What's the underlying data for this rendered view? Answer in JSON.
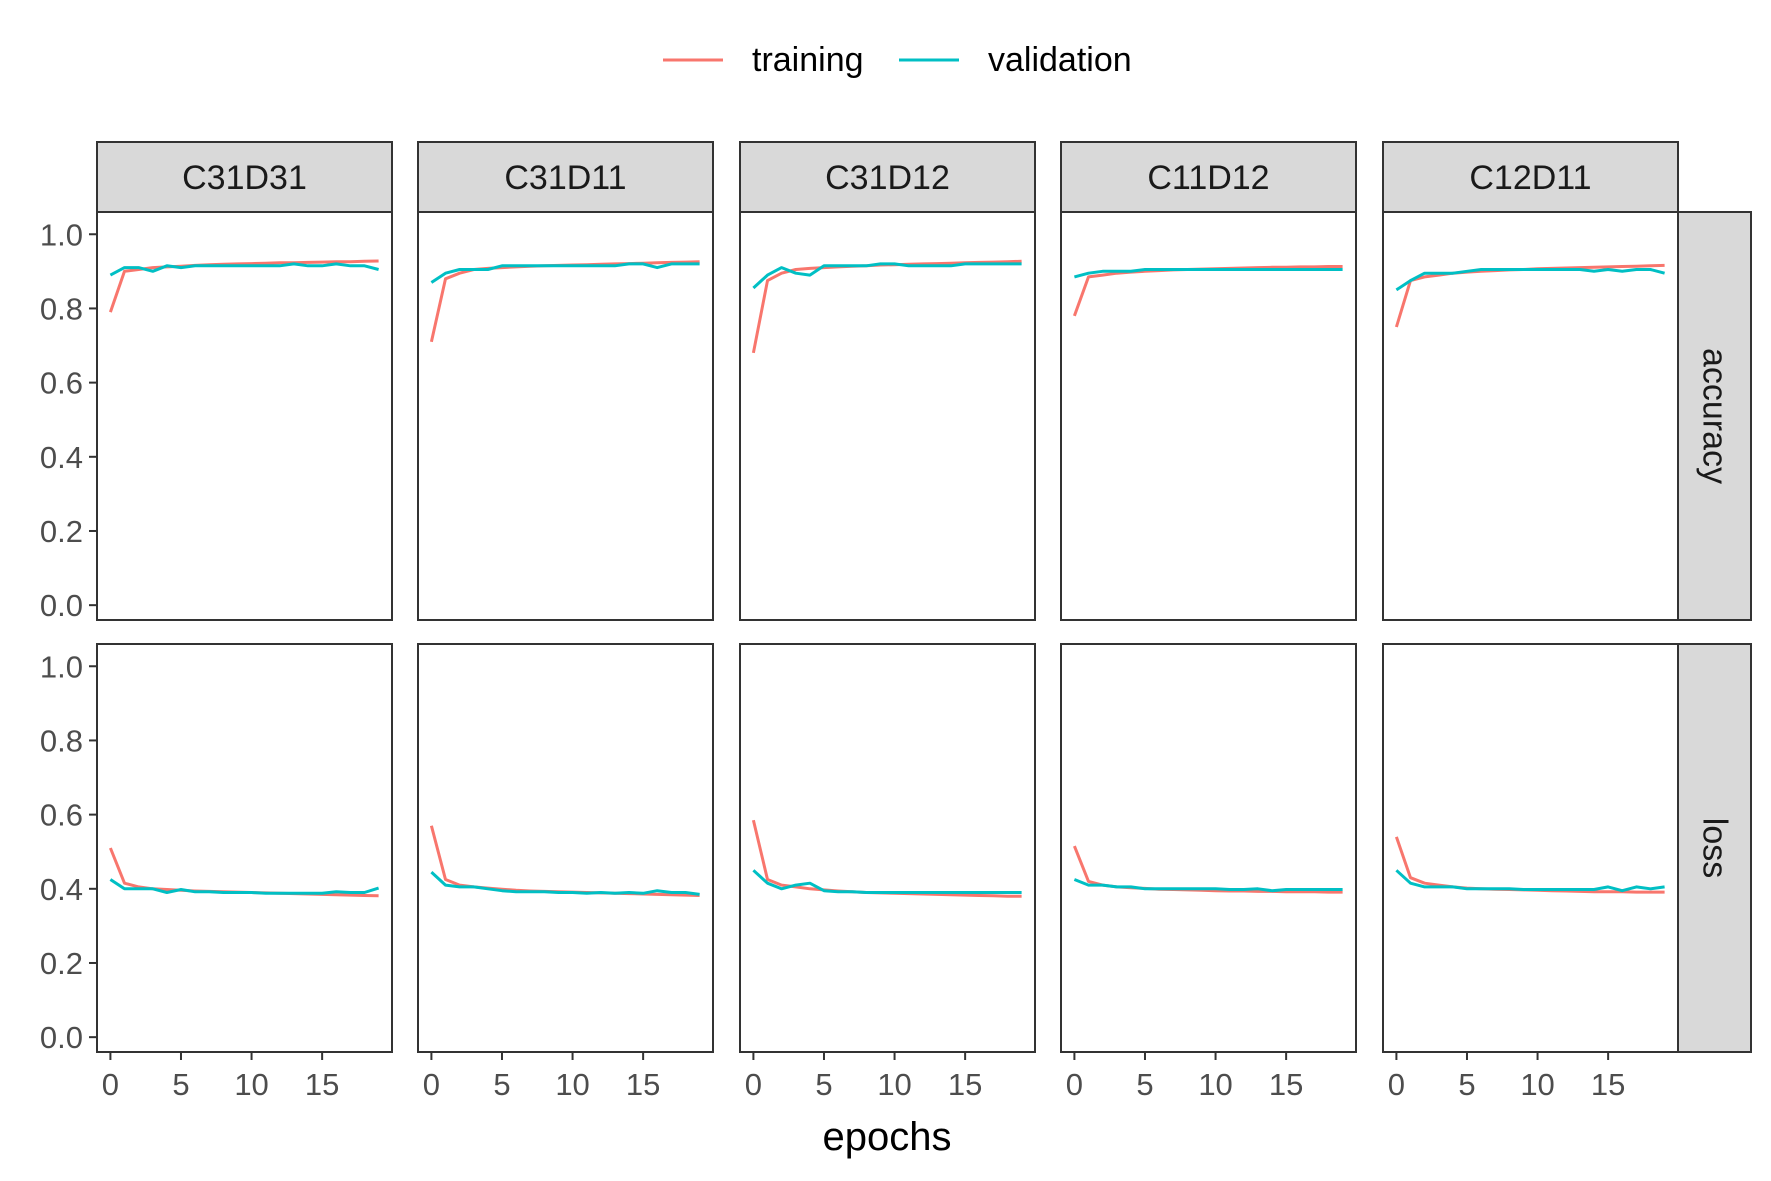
{
  "chart_data": {
    "type": "line",
    "title": "",
    "xlabel": "epochs",
    "ylabel": "",
    "facet_columns": [
      "C31D31",
      "C31D11",
      "C31D12",
      "C11D12",
      "C12D11"
    ],
    "facet_rows": [
      "accuracy",
      "loss"
    ],
    "x": [
      0,
      1,
      2,
      3,
      4,
      5,
      6,
      7,
      8,
      9,
      10,
      11,
      12,
      13,
      14,
      15,
      16,
      17,
      18,
      19
    ],
    "xlim": [
      -0.95,
      19.95
    ],
    "ylim": [
      -0.04,
      1.06
    ],
    "x_ticks": [
      "0",
      "5",
      "10",
      "15"
    ],
    "y_ticks": [
      "0.0",
      "0.2",
      "0.4",
      "0.6",
      "0.8",
      "1.0"
    ],
    "grid": false,
    "legend": {
      "position": "top",
      "entries": [
        "training",
        "validation"
      ]
    },
    "colors": {
      "training": "#F8766D",
      "validation": "#00BFC4"
    },
    "series": [
      "training",
      "validation"
    ],
    "panels": {
      "C31D31": {
        "accuracy": {
          "training": [
            0.79,
            0.9,
            0.905,
            0.91,
            0.912,
            0.914,
            0.916,
            0.918,
            0.919,
            0.92,
            0.921,
            0.922,
            0.923,
            0.923,
            0.924,
            0.925,
            0.926,
            0.926,
            0.927,
            0.928
          ],
          "validation": [
            0.89,
            0.91,
            0.91,
            0.9,
            0.915,
            0.91,
            0.915,
            0.915,
            0.915,
            0.915,
            0.915,
            0.915,
            0.915,
            0.92,
            0.915,
            0.915,
            0.92,
            0.915,
            0.915,
            0.905
          ]
        },
        "loss": {
          "training": [
            0.51,
            0.415,
            0.405,
            0.4,
            0.398,
            0.396,
            0.394,
            0.393,
            0.392,
            0.391,
            0.39,
            0.389,
            0.388,
            0.387,
            0.386,
            0.385,
            0.384,
            0.383,
            0.382,
            0.381
          ],
          "validation": [
            0.425,
            0.4,
            0.4,
            0.4,
            0.39,
            0.398,
            0.392,
            0.392,
            0.39,
            0.39,
            0.39,
            0.388,
            0.388,
            0.388,
            0.388,
            0.388,
            0.392,
            0.39,
            0.39,
            0.402
          ]
        }
      },
      "C31D11": {
        "accuracy": {
          "training": [
            0.71,
            0.88,
            0.895,
            0.905,
            0.908,
            0.91,
            0.912,
            0.914,
            0.915,
            0.916,
            0.917,
            0.918,
            0.919,
            0.92,
            0.921,
            0.922,
            0.923,
            0.924,
            0.925,
            0.926
          ],
          "validation": [
            0.87,
            0.895,
            0.905,
            0.905,
            0.905,
            0.915,
            0.915,
            0.915,
            0.915,
            0.915,
            0.915,
            0.915,
            0.915,
            0.915,
            0.92,
            0.92,
            0.91,
            0.92,
            0.92,
            0.92
          ]
        },
        "loss": {
          "training": [
            0.57,
            0.425,
            0.41,
            0.405,
            0.402,
            0.399,
            0.396,
            0.394,
            0.393,
            0.392,
            0.391,
            0.39,
            0.389,
            0.388,
            0.387,
            0.386,
            0.385,
            0.384,
            0.383,
            0.382
          ],
          "validation": [
            0.445,
            0.41,
            0.405,
            0.405,
            0.4,
            0.395,
            0.392,
            0.392,
            0.392,
            0.39,
            0.39,
            0.388,
            0.39,
            0.388,
            0.39,
            0.388,
            0.395,
            0.39,
            0.39,
            0.385
          ]
        }
      },
      "C31D12": {
        "accuracy": {
          "training": [
            0.68,
            0.875,
            0.895,
            0.905,
            0.908,
            0.91,
            0.912,
            0.914,
            0.915,
            0.917,
            0.918,
            0.919,
            0.92,
            0.921,
            0.922,
            0.923,
            0.924,
            0.925,
            0.926,
            0.927
          ],
          "validation": [
            0.855,
            0.89,
            0.91,
            0.895,
            0.89,
            0.915,
            0.915,
            0.915,
            0.915,
            0.92,
            0.92,
            0.915,
            0.915,
            0.915,
            0.915,
            0.92,
            0.92,
            0.92,
            0.92,
            0.92
          ]
        },
        "loss": {
          "training": [
            0.585,
            0.425,
            0.41,
            0.405,
            0.4,
            0.397,
            0.394,
            0.392,
            0.39,
            0.389,
            0.388,
            0.387,
            0.386,
            0.385,
            0.384,
            0.383,
            0.382,
            0.381,
            0.38,
            0.38
          ],
          "validation": [
            0.45,
            0.415,
            0.4,
            0.41,
            0.415,
            0.395,
            0.392,
            0.392,
            0.39,
            0.39,
            0.39,
            0.39,
            0.39,
            0.39,
            0.39,
            0.39,
            0.39,
            0.39,
            0.39,
            0.39
          ]
        }
      },
      "C11D12": {
        "accuracy": {
          "training": [
            0.78,
            0.885,
            0.89,
            0.895,
            0.898,
            0.9,
            0.902,
            0.904,
            0.905,
            0.906,
            0.907,
            0.908,
            0.909,
            0.91,
            0.911,
            0.911,
            0.912,
            0.912,
            0.913,
            0.913
          ],
          "validation": [
            0.885,
            0.895,
            0.9,
            0.9,
            0.9,
            0.905,
            0.905,
            0.905,
            0.905,
            0.905,
            0.905,
            0.905,
            0.905,
            0.905,
            0.905,
            0.905,
            0.905,
            0.905,
            0.905,
            0.905
          ]
        },
        "loss": {
          "training": [
            0.515,
            0.42,
            0.41,
            0.405,
            0.403,
            0.401,
            0.399,
            0.398,
            0.397,
            0.396,
            0.395,
            0.394,
            0.394,
            0.393,
            0.393,
            0.392,
            0.392,
            0.392,
            0.391,
            0.391
          ],
          "validation": [
            0.425,
            0.41,
            0.41,
            0.405,
            0.405,
            0.4,
            0.4,
            0.4,
            0.4,
            0.4,
            0.4,
            0.398,
            0.398,
            0.4,
            0.395,
            0.398,
            0.398,
            0.398,
            0.398,
            0.398
          ]
        }
      },
      "C12D11": {
        "accuracy": {
          "training": [
            0.75,
            0.875,
            0.885,
            0.89,
            0.895,
            0.898,
            0.9,
            0.902,
            0.904,
            0.905,
            0.907,
            0.908,
            0.909,
            0.91,
            0.911,
            0.912,
            0.913,
            0.914,
            0.915,
            0.916
          ],
          "validation": [
            0.85,
            0.875,
            0.895,
            0.895,
            0.895,
            0.9,
            0.905,
            0.905,
            0.905,
            0.905,
            0.905,
            0.905,
            0.905,
            0.905,
            0.9,
            0.905,
            0.9,
            0.905,
            0.905,
            0.895
          ]
        },
        "loss": {
          "training": [
            0.54,
            0.43,
            0.415,
            0.41,
            0.405,
            0.402,
            0.4,
            0.399,
            0.398,
            0.397,
            0.396,
            0.395,
            0.394,
            0.393,
            0.392,
            0.392,
            0.392,
            0.391,
            0.391,
            0.391
          ],
          "validation": [
            0.45,
            0.415,
            0.405,
            0.405,
            0.405,
            0.4,
            0.4,
            0.4,
            0.4,
            0.398,
            0.398,
            0.398,
            0.398,
            0.398,
            0.398,
            0.405,
            0.395,
            0.405,
            0.4,
            0.405
          ]
        }
      }
    }
  }
}
